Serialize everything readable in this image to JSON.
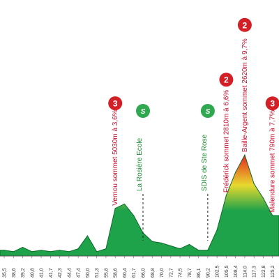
{
  "chart_data": {
    "type": "area",
    "title": "",
    "xlabel": "",
    "ylabel": "",
    "ylim": [
      0,
      100
    ],
    "colors": {
      "fill_low": "#1fa34a",
      "fill_mid": "#e8d92e",
      "fill_high": "#e5261f",
      "outline": "#0a6b2c",
      "climb_badge": "#d32027",
      "sprint_badge": "#2fa84f",
      "climb_text": "#c8102e",
      "sprint_text": "#1e8a34"
    },
    "x_ticks": [
      "35,5",
      "38,6",
      "39,2",
      "40,8",
      "41,0",
      "41,7",
      "42,3",
      "44,4",
      "47,4",
      "50,0",
      "51,3",
      "55,8",
      "58,6",
      "60,4",
      "61,7",
      "66,0",
      "68,8",
      "70,0",
      "72,7",
      "74,5",
      "78,7",
      "86,1",
      "90,2",
      "102,5",
      "105,5",
      "108,4",
      "114,0",
      "117,3",
      "122,8",
      "125,2"
    ],
    "x": [
      35.5,
      38.6,
      39.2,
      40.8,
      41.0,
      41.7,
      42.3,
      44.4,
      47.4,
      50.0,
      51.3,
      55.8,
      58.6,
      60.4,
      61.7,
      66.0,
      68.8,
      70.0,
      72.7,
      74.5,
      78.7,
      86.1,
      90.2,
      102.5,
      105.5,
      108.4,
      114.0,
      117.3,
      122.8,
      125.2
    ],
    "y": [
      4,
      3,
      6,
      3,
      4,
      3,
      4,
      3,
      5,
      14,
      3,
      5,
      33,
      36,
      28,
      16,
      10,
      9,
      7,
      5,
      8,
      4,
      4,
      18,
      42,
      58,
      70,
      50,
      40,
      28
    ],
    "climbs": [
      {
        "category": "3",
        "label": "Vernou sommet 5030m à 3,6%",
        "x": 58.6
      },
      {
        "category": "2",
        "label": "Frédérick sommet 2810m à 6,6%",
        "x": 105.5
      },
      {
        "category": "2",
        "label": "Baille-Argent sommet 2620m à 9,7%",
        "x": 114.0
      },
      {
        "category": "3",
        "label": "Malendure sommet 790m à 7,7%",
        "x": 125.2
      }
    ],
    "sprints": [
      {
        "icon": "S",
        "label": "La Rosière Ecole",
        "x": 66.0
      },
      {
        "icon": "S",
        "label": "SDIS de Ste Rose",
        "x": 90.2
      }
    ]
  }
}
